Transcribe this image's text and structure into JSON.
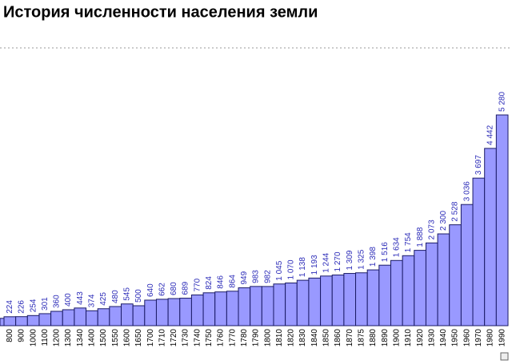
{
  "chart_data": {
    "type": "bar",
    "title": "История численности населения земли",
    "categories": [
      "800",
      "900",
      "1000",
      "1100",
      "1200",
      "1300",
      "1340",
      "1400",
      "1500",
      "1550",
      "1600",
      "1650",
      "1700",
      "1710",
      "1720",
      "1730",
      "1740",
      "1750",
      "1760",
      "1770",
      "1780",
      "1790",
      "1800",
      "1810",
      "1820",
      "1830",
      "1840",
      "1850",
      "1860",
      "1870",
      "1875",
      "1880",
      "1890",
      "1900",
      "1910",
      "1920",
      "1930",
      "1940",
      "1950",
      "1960",
      "1970",
      "1980",
      "1990"
    ],
    "values": [
      224,
      226,
      254,
      301,
      360,
      400,
      443,
      374,
      425,
      480,
      545,
      500,
      640,
      662,
      680,
      689,
      770,
      824,
      846,
      864,
      949,
      983,
      982,
      1045,
      1070,
      1138,
      1193,
      1244,
      1270,
      1309,
      1325,
      1398,
      1516,
      1634,
      1754,
      1888,
      2073,
      2300,
      2528,
      3036,
      3697,
      4442,
      5280
    ],
    "value_labels": [
      "224",
      "226",
      "254",
      "301",
      "360",
      "400",
      "443",
      "374",
      "425",
      "480",
      "545",
      "500",
      "640",
      "662",
      "680",
      "689",
      "770",
      "824",
      "846",
      "864",
      "949",
      "983",
      "982",
      "1 045",
      "1 070",
      "1 138",
      "1 193",
      "1 244",
      "1 270",
      "1 309",
      "1 325",
      "1 398",
      "1 516",
      "1 634",
      "1 754",
      "1 888",
      "2 073",
      "2 300",
      "2 528",
      "3 036",
      "3 697",
      "4 442",
      "5 280"
    ],
    "color": "#9999ff",
    "ylim": [
      0,
      8000
    ]
  }
}
